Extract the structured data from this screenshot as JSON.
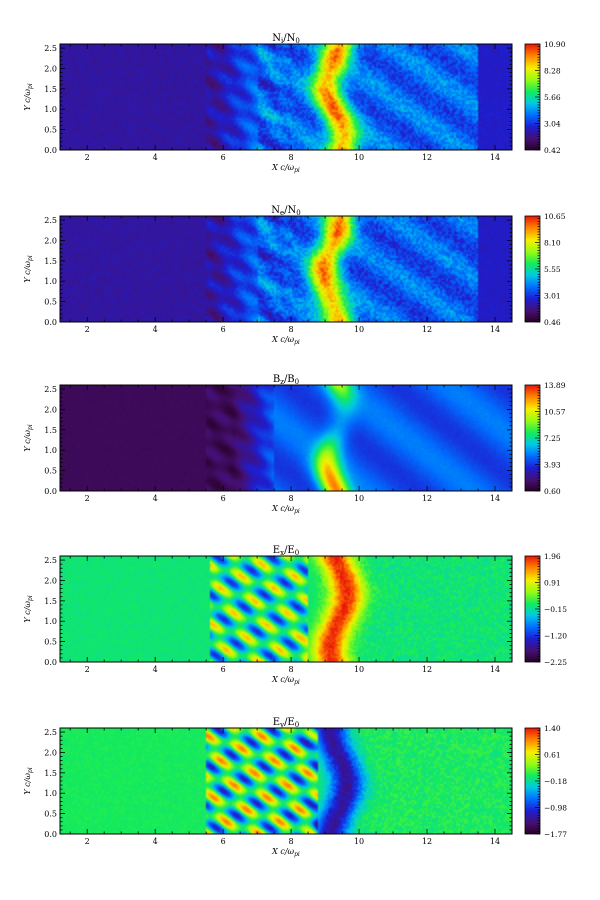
{
  "chart_data": [
    {
      "type": "heatmap",
      "title_main": "N",
      "title_sub1": "i",
      "title_mid": "/N",
      "title_sub2": "0",
      "xlabel_main": "X c/ω",
      "xlabel_sub": "pi",
      "ylabel_main": "Y c/ω",
      "ylabel_sub": "pi",
      "xlim": [
        1.2,
        14.5
      ],
      "ylim": [
        0.0,
        2.6
      ],
      "x_ticks": [
        "2",
        "4",
        "6",
        "8",
        "10",
        "12",
        "14"
      ],
      "y_ticks": [
        "0.0",
        "0.5",
        "1.0",
        "1.5",
        "2.0",
        "2.5"
      ],
      "colorbar_ticks": [
        "10.90",
        "8.28",
        "5.66",
        "3.04",
        "0.42"
      ],
      "colorscale": "rainbow",
      "field": "density",
      "structure": {
        "base": 0.16,
        "ripple_x": [
          5.5,
          8.0
        ],
        "front_x": 7.0,
        "ridge_x": 9.3,
        "ridge_width": 0.45,
        "downstream_level": 0.32,
        "downstream_end": 13.5
      }
    },
    {
      "type": "heatmap",
      "title_main": "N",
      "title_sub1": "e",
      "title_mid": "/N",
      "title_sub2": "0",
      "xlabel_main": "X c/ω",
      "xlabel_sub": "pi",
      "ylabel_main": "Y c/ω",
      "ylabel_sub": "pi",
      "xlim": [
        1.2,
        14.5
      ],
      "ylim": [
        0.0,
        2.6
      ],
      "x_ticks": [
        "2",
        "4",
        "6",
        "8",
        "10",
        "12",
        "14"
      ],
      "y_ticks": [
        "0.0",
        "0.5",
        "1.0",
        "1.5",
        "2.0",
        "2.5"
      ],
      "colorbar_ticks": [
        "10.65",
        "8.10",
        "5.55",
        "3.01",
        "0.46"
      ],
      "colorscale": "rainbow",
      "field": "density",
      "structure": {
        "base": 0.16,
        "ripple_x": [
          5.5,
          8.0
        ],
        "front_x": 7.0,
        "ridge_x": 9.2,
        "ridge_width": 0.45,
        "downstream_level": 0.31,
        "downstream_end": 13.5
      }
    },
    {
      "type": "heatmap",
      "title_main": "B",
      "title_sub1": "z",
      "title_mid": "/B",
      "title_sub2": "0",
      "xlabel_main": "X c/ω",
      "xlabel_sub": "pi",
      "ylabel_main": "Y c/ω",
      "ylabel_sub": "pi",
      "xlim": [
        1.2,
        14.5
      ],
      "ylim": [
        0.0,
        2.6
      ],
      "x_ticks": [
        "2",
        "4",
        "6",
        "8",
        "10",
        "12",
        "14"
      ],
      "y_ticks": [
        "0.0",
        "0.5",
        "1.0",
        "1.5",
        "2.0",
        "2.5"
      ],
      "colorbar_ticks": [
        "13.89",
        "10.57",
        "7.25",
        "3.93",
        "0.60"
      ],
      "colorscale": "rainbow",
      "field": "magnetic",
      "structure": {
        "base": 0.07,
        "ripple_x": [
          5.5,
          7.5
        ],
        "front_x": 7.5,
        "ridge_x": 9.3,
        "ridge_width": 0.4,
        "downstream_level": 0.3,
        "downstream_end": 14.5
      }
    },
    {
      "type": "heatmap",
      "title_main": "E",
      "title_sub1": "x",
      "title_mid": "/E",
      "title_sub2": "0",
      "xlabel_main": "X c/ω",
      "xlabel_sub": "pi",
      "ylabel_main": "Y c/ω",
      "ylabel_sub": "pi",
      "xlim": [
        1.2,
        14.5
      ],
      "ylim": [
        0.0,
        2.6
      ],
      "x_ticks": [
        "2",
        "4",
        "6",
        "8",
        "10",
        "12",
        "14"
      ],
      "y_ticks": [
        "0.0",
        "0.5",
        "1.0",
        "1.5",
        "2.0",
        "2.5"
      ],
      "colorbar_ticks": [
        "1.96",
        "0.91",
        "−0.15",
        "−1.20",
        "−2.25"
      ],
      "colorscale": "rainbow",
      "field": "efield_x",
      "structure": {
        "base": 0.53,
        "ripple_x": [
          5.6,
          8.5
        ],
        "front_x": 8.8,
        "ridge_x": 9.4,
        "ridge_width": 0.5,
        "downstream_level": 0.5,
        "downstream_end": 14.5
      }
    },
    {
      "type": "heatmap",
      "title_main": "E",
      "title_sub1": "y",
      "title_mid": "/E",
      "title_sub2": "0",
      "xlabel_main": "X c/ω",
      "xlabel_sub": "pi",
      "ylabel_main": "Y c/ω",
      "ylabel_sub": "pi",
      "xlim": [
        1.2,
        14.5
      ],
      "ylim": [
        0.0,
        2.6
      ],
      "x_ticks": [
        "2",
        "4",
        "6",
        "8",
        "10",
        "12",
        "14"
      ],
      "y_ticks": [
        "0.0",
        "0.5",
        "1.0",
        "1.5",
        "2.0",
        "2.5"
      ],
      "colorbar_ticks": [
        "1.40",
        "0.61",
        "−0.18",
        "−0.98",
        "−1.77"
      ],
      "colorscale": "rainbow",
      "field": "efield_y",
      "structure": {
        "base": 0.55,
        "ripple_x": [
          5.5,
          8.8
        ],
        "front_x": 9.0,
        "ridge_x": 9.4,
        "ridge_width": 0.5,
        "downstream_level": 0.52,
        "downstream_end": 14.5
      }
    }
  ]
}
